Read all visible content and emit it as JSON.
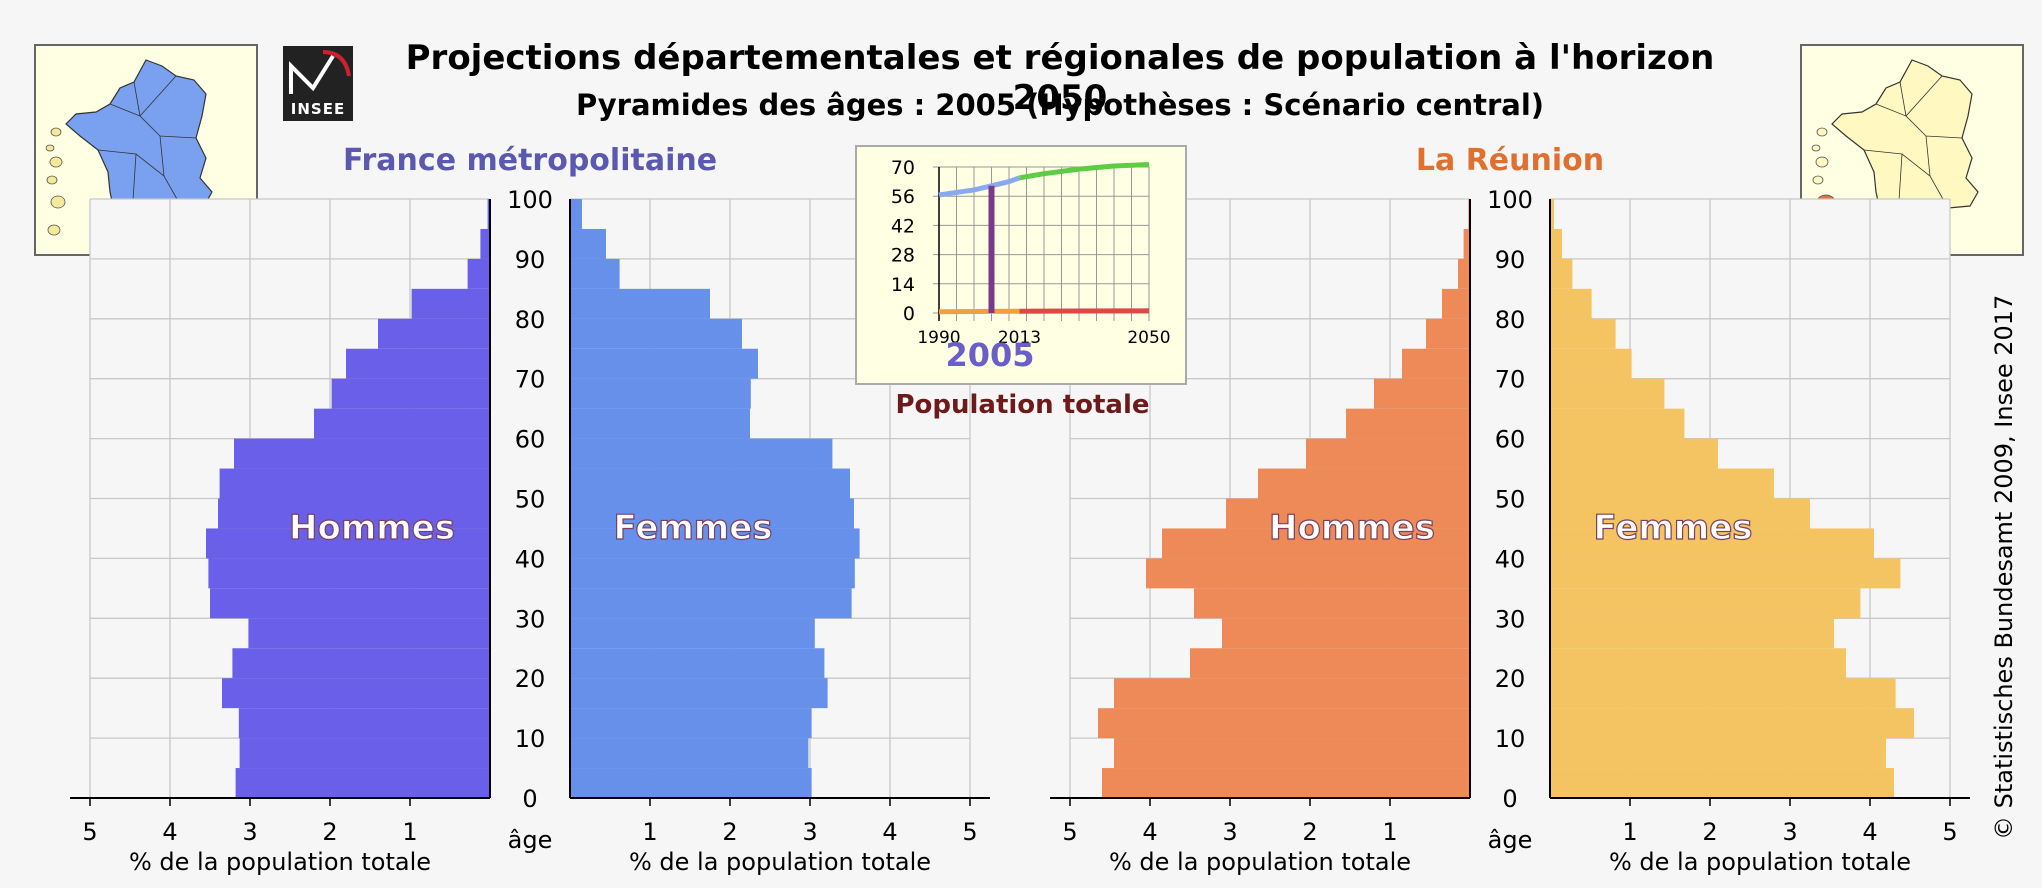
{
  "header": {
    "title": "Projections départementales et régionales de population à l'horizon 2050",
    "subtitle": "Pyramides des âges : 2005 (Hypothèses : Scénario central)",
    "logo_text": "INSEE",
    "copyright": "© Statistisches Bundesamt 2009, Insee 2017"
  },
  "colors": {
    "france_hommes": "#6a5fe8",
    "france_femmes": "#6690ea",
    "reunion_hommes": "#ee8a58",
    "reunion_femmes": "#f4c462",
    "map_france": "#7aa0f0",
    "map_highlight": "#e2723c",
    "map_land": "#fff8c0"
  },
  "chart_data": [
    {
      "type": "bar",
      "title": "France métropolitaine",
      "age_axis_label": "âge",
      "xlabel": "% de la population totale",
      "age_ticks": [
        0,
        10,
        20,
        30,
        40,
        50,
        60,
        70,
        80,
        90,
        100
      ],
      "xlim": [
        0,
        5
      ],
      "left_ticks": [
        "5",
        "4",
        "3",
        "2",
        "1"
      ],
      "right_ticks": [
        "1",
        "2",
        "3",
        "4",
        "5"
      ],
      "age_groups": [
        0,
        5,
        10,
        15,
        20,
        25,
        30,
        35,
        40,
        45,
        50,
        55,
        60,
        65,
        70,
        75,
        80,
        85,
        90,
        95
      ],
      "series": [
        {
          "name": "Hommes",
          "values": [
            3.18,
            3.13,
            3.14,
            3.35,
            3.22,
            3.02,
            3.5,
            3.52,
            3.55,
            3.4,
            3.38,
            3.2,
            2.2,
            1.98,
            1.8,
            1.4,
            0.98,
            0.28,
            0.12,
            0.03
          ]
        },
        {
          "name": "Femmes",
          "values": [
            3.02,
            2.98,
            3.02,
            3.22,
            3.18,
            3.06,
            3.52,
            3.56,
            3.62,
            3.55,
            3.5,
            3.28,
            2.25,
            2.26,
            2.35,
            2.15,
            1.75,
            0.62,
            0.45,
            0.15
          ]
        }
      ]
    },
    {
      "type": "bar",
      "title": "La Réunion",
      "age_axis_label": "âge",
      "xlabel": "% de la population totale",
      "age_ticks": [
        0,
        10,
        20,
        30,
        40,
        50,
        60,
        70,
        80,
        90,
        100
      ],
      "xlim": [
        0,
        5
      ],
      "left_ticks": [
        "5",
        "4",
        "3",
        "2",
        "1"
      ],
      "right_ticks": [
        "1",
        "2",
        "3",
        "4",
        "5"
      ],
      "age_groups": [
        0,
        5,
        10,
        15,
        20,
        25,
        30,
        35,
        40,
        45,
        50,
        55,
        60,
        65,
        70,
        75,
        80,
        85,
        90,
        95
      ],
      "series": [
        {
          "name": "Hommes",
          "values": [
            4.6,
            4.45,
            4.65,
            4.45,
            3.5,
            3.1,
            3.45,
            4.05,
            3.85,
            3.05,
            2.65,
            2.05,
            1.55,
            1.2,
            0.85,
            0.55,
            0.35,
            0.15,
            0.08,
            0.02
          ]
        },
        {
          "name": "Femmes",
          "values": [
            4.3,
            4.2,
            4.55,
            4.32,
            3.7,
            3.55,
            3.88,
            4.38,
            4.05,
            3.25,
            2.8,
            2.1,
            1.68,
            1.43,
            1.02,
            0.82,
            0.52,
            0.28,
            0.15,
            0.05
          ]
        }
      ]
    },
    {
      "type": "line",
      "title": "",
      "caption": "Population totale",
      "year_label": "2005",
      "x_ticks": [
        1990,
        2013,
        2050
      ],
      "y_ticks": [
        0,
        14,
        28,
        42,
        56,
        70
      ],
      "xlim": [
        1990,
        2050
      ],
      "ylim": [
        0,
        70
      ],
      "current_year": 2005,
      "series": [
        {
          "values": [
            [
              1990,
              56.6
            ],
            [
              1995,
              57.8
            ],
            [
              2000,
              59.0
            ],
            [
              2005,
              61.0
            ],
            [
              2010,
              63.0
            ],
            [
              2013,
              64.8
            ],
            [
              2020,
              66.8
            ],
            [
              2030,
              69.0
            ],
            [
              2040,
              70.5
            ],
            [
              2050,
              71.2
            ]
          ]
        },
        {
          "values": [
            [
              1990,
              0.6
            ],
            [
              1995,
              0.65
            ],
            [
              2000,
              0.72
            ],
            [
              2005,
              0.78
            ],
            [
              2010,
              0.83
            ],
            [
              2013,
              0.85
            ],
            [
              2020,
              0.9
            ],
            [
              2030,
              0.95
            ],
            [
              2040,
              1.0
            ],
            [
              2050,
              1.05
            ]
          ]
        }
      ]
    }
  ]
}
